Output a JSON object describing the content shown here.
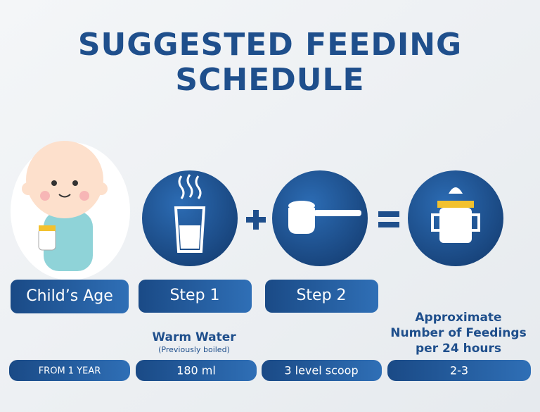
{
  "title": [
    "SUGGESTED FEEDING",
    "SCHEDULE"
  ],
  "columns": [
    {
      "header": "Child’s Age",
      "value": "FROM 1 YEAR"
    },
    {
      "header": "Step 1",
      "subtitle": "Warm Water",
      "note": "(Previously boiled)",
      "value": "180 ml"
    },
    {
      "header": "Step 2",
      "value": "3 level scoop"
    },
    {
      "subtitle": [
        "Approximate",
        "Number of Feedings",
        "per 24 hours"
      ],
      "value": "2-3"
    }
  ]
}
